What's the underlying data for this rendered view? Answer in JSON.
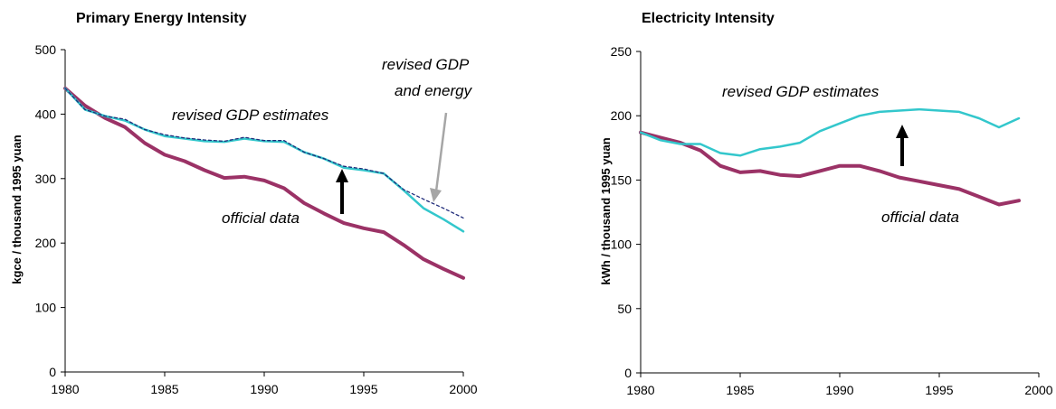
{
  "colors": {
    "official": "#9b3266",
    "revised": "#33c7cc",
    "revised_both": "#1f2b7a",
    "arrow": "#000000",
    "grey_arrow": "#a6a6a6"
  },
  "chart_data": [
    {
      "type": "line",
      "title": "Primary Energy Intensity",
      "xlabel": "",
      "ylabel": "kgce / thousand 1995 yuan",
      "xlim": [
        1980,
        2000
      ],
      "ylim": [
        0,
        500
      ],
      "x_ticks": [
        "1980",
        "1985",
        "1990",
        "1995",
        "2000"
      ],
      "y_ticks": [
        "0",
        "100",
        "200",
        "300",
        "400",
        "500"
      ],
      "grid": false,
      "series": [
        {
          "name": "official data",
          "x": [
            1980,
            1981,
            1982,
            1983,
            1984,
            1985,
            1986,
            1987,
            1988,
            1989,
            1990,
            1991,
            1992,
            1993,
            1994,
            1995,
            1996,
            1997,
            1998,
            1999,
            2000
          ],
          "y": [
            440,
            413,
            394,
            380,
            355,
            337,
            327,
            313,
            301,
            303,
            297,
            285,
            262,
            246,
            231,
            223,
            217,
            197,
            175,
            160,
            146
          ]
        },
        {
          "name": "revised GDP estimates",
          "x": [
            1980,
            1981,
            1982,
            1983,
            1984,
            1985,
            1986,
            1987,
            1988,
            1989,
            1990,
            1991,
            1992,
            1993,
            1994,
            1995,
            1996,
            1997,
            1998,
            1999,
            2000
          ],
          "y": [
            440,
            407,
            397,
            390,
            376,
            366,
            362,
            358,
            357,
            362,
            358,
            357,
            341,
            331,
            317,
            313,
            308,
            282,
            254,
            237,
            218
          ]
        },
        {
          "name": "revised GDP and energy",
          "x": [
            1980,
            1981,
            1982,
            1983,
            1984,
            1985,
            1986,
            1987,
            1988,
            1989,
            1990,
            1991,
            1992,
            1993,
            1994,
            1995,
            1996,
            1997,
            1998,
            1999,
            2000
          ],
          "y": [
            440,
            407,
            397,
            392,
            376,
            368,
            363,
            360,
            358,
            364,
            359,
            359,
            341,
            331,
            319,
            315,
            308,
            283,
            268,
            254,
            239
          ]
        }
      ],
      "annotations": [
        {
          "text": "revised GDP estimates"
        },
        {
          "text": "official data"
        },
        {
          "text": "revised GDP"
        },
        {
          "text": "and energy"
        }
      ]
    },
    {
      "type": "line",
      "title": "Electricity Intensity",
      "xlabel": "",
      "ylabel": "kWh / thousand 1995 yuan",
      "xlim": [
        1980,
        2000
      ],
      "ylim": [
        0,
        250
      ],
      "x_ticks": [
        "1980",
        "1985",
        "1990",
        "1995",
        "2000"
      ],
      "y_ticks": [
        "0",
        "50",
        "100",
        "150",
        "200",
        "250"
      ],
      "grid": false,
      "series": [
        {
          "name": "official data",
          "x": [
            1980,
            1981,
            1982,
            1983,
            1984,
            1985,
            1986,
            1987,
            1988,
            1989,
            1990,
            1991,
            1992,
            1993,
            1994,
            1995,
            1996,
            1997,
            1998,
            1999
          ],
          "y": [
            187,
            183,
            179,
            173,
            161,
            156,
            157,
            154,
            153,
            157,
            161,
            161,
            157,
            152,
            149,
            146,
            143,
            137,
            131,
            134
          ]
        },
        {
          "name": "revised GDP estimates",
          "x": [
            1980,
            1981,
            1982,
            1983,
            1984,
            1985,
            1986,
            1987,
            1988,
            1989,
            1990,
            1991,
            1992,
            1993,
            1994,
            1995,
            1996,
            1997,
            1998,
            1999
          ],
          "y": [
            187,
            181,
            178,
            178,
            171,
            169,
            174,
            176,
            179,
            188,
            194,
            200,
            203,
            204,
            205,
            204,
            203,
            198,
            191,
            198
          ]
        }
      ],
      "annotations": [
        {
          "text": "revised GDP estimates"
        },
        {
          "text": "official data"
        }
      ]
    }
  ]
}
